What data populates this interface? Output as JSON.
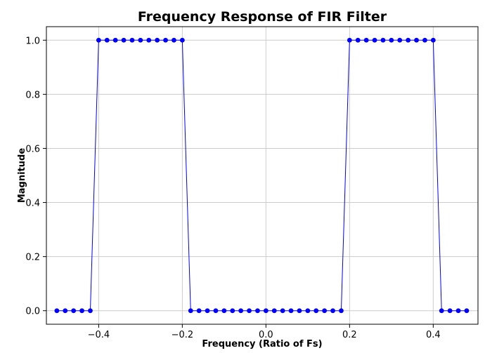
{
  "chart_data": {
    "type": "line",
    "title": "Frequency Response of FIR Filter",
    "xlabel": "Frequency (Ratio of Fs)",
    "ylabel": "Magnitude",
    "xlim": [
      -0.525,
      0.507
    ],
    "ylim": [
      -0.05,
      1.05
    ],
    "xticks": [
      -0.4,
      -0.2,
      0.0,
      0.2,
      0.4
    ],
    "xtick_labels": [
      "−0.4",
      "−0.2",
      "0.0",
      "0.2",
      "0.4"
    ],
    "yticks": [
      0.0,
      0.2,
      0.4,
      0.6,
      0.8,
      1.0
    ],
    "ytick_labels": [
      "0.0",
      "0.2",
      "0.4",
      "0.6",
      "0.8",
      "1.0"
    ],
    "grid": true,
    "series": [
      {
        "color": "#0000ff",
        "marker": "circle",
        "x": [
          -0.5,
          -0.48,
          -0.46,
          -0.44,
          -0.42,
          -0.4,
          -0.38,
          -0.36,
          -0.34,
          -0.32,
          -0.3,
          -0.28,
          -0.26,
          -0.24,
          -0.22,
          -0.2,
          -0.18,
          -0.16,
          -0.14,
          -0.12,
          -0.1,
          -0.08,
          -0.06,
          -0.04,
          -0.02,
          0.0,
          0.02,
          0.04,
          0.06,
          0.08,
          0.1,
          0.12,
          0.14,
          0.16,
          0.18,
          0.2,
          0.22,
          0.24,
          0.26,
          0.28,
          0.3,
          0.32,
          0.34,
          0.36,
          0.38,
          0.4,
          0.42,
          0.44,
          0.46,
          0.48
        ],
        "y": [
          0,
          0,
          0,
          0,
          0,
          1,
          1,
          1,
          1,
          1,
          1,
          1,
          1,
          1,
          1,
          1,
          0,
          0,
          0,
          0,
          0,
          0,
          0,
          0,
          0,
          0,
          0,
          0,
          0,
          0,
          0,
          0,
          0,
          0,
          0,
          1,
          1,
          1,
          1,
          1,
          1,
          1,
          1,
          1,
          1,
          1,
          0,
          0,
          0,
          0
        ]
      }
    ]
  }
}
